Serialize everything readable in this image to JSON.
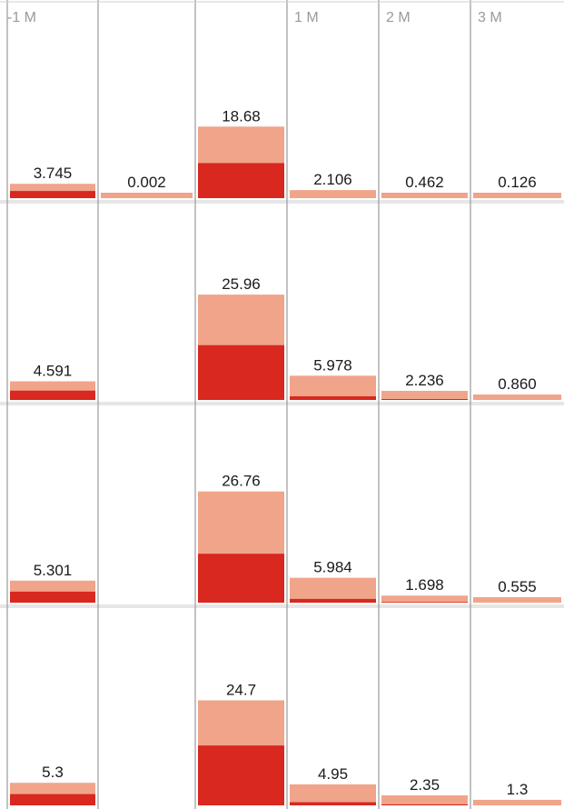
{
  "chart_data": {
    "type": "bar",
    "columns": [
      "-1 M",
      "",
      "",
      "1 M",
      "2 M",
      "3 M"
    ],
    "colors": {
      "light": "#f0a48a",
      "dark": "#d8281f",
      "grid": "#9a9a9a",
      "rowline": "#d0d0d0"
    },
    "rows": [
      {
        "total": [
          3.745,
          0.002,
          18.68,
          2.106,
          0.462,
          0.126
        ],
        "labels": [
          "3.745",
          "0.002",
          "18.68",
          "2.106",
          "0.462",
          "0.126"
        ],
        "dark_share": [
          0.5,
          0,
          0.49,
          0,
          0,
          0
        ],
        "ymax": 28
      },
      {
        "total": [
          4.591,
          null,
          25.96,
          5.978,
          2.236,
          0.86
        ],
        "labels": [
          "4.591",
          "",
          "25.96",
          "5.978",
          "2.236",
          "0.860"
        ],
        "dark_share": [
          0.5,
          0,
          0.52,
          0.15,
          0.1,
          0
        ],
        "ymax": 28
      },
      {
        "total": [
          5.301,
          null,
          26.76,
          5.984,
          1.698,
          0.555
        ],
        "labels": [
          "5.301",
          "",
          "26.76",
          "5.984",
          "1.698",
          "0.555"
        ],
        "dark_share": [
          0.5,
          0,
          0.44,
          0.15,
          0.1,
          0
        ],
        "ymax": 28
      },
      {
        "total": [
          5.3,
          null,
          24.7,
          4.95,
          2.35,
          1.3
        ],
        "labels": [
          "5.3",
          "",
          "24.7",
          "4.95",
          "2.35",
          "1.3"
        ],
        "dark_share": [
          0.5,
          0,
          0.57,
          0.15,
          0.1,
          0
        ],
        "ymax": 28
      }
    ]
  }
}
